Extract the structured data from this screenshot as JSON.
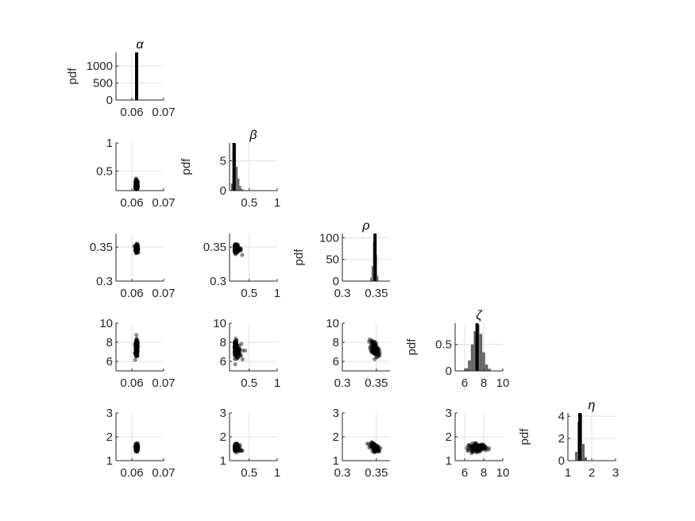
{
  "chart_data": {
    "type": "scatter",
    "description_kind": "corner-plot",
    "parameters": [
      {
        "symbol": "α",
        "lim": [
          0.055,
          0.07
        ],
        "ticks": [
          0.06,
          0.07
        ],
        "tick_labels": [
          "0.06",
          "0.07"
        ],
        "center": 0.0615,
        "spread": 0.0002
      },
      {
        "symbol": "β",
        "lim": [
          0.15,
          1.0
        ],
        "ticks": [
          0.5,
          1.0
        ],
        "tick_labels": [
          "0.5",
          "1"
        ],
        "center": 0.24,
        "spread": 0.05
      },
      {
        "symbol": "ρ",
        "lim": [
          0.3,
          0.37
        ],
        "ticks": [
          0.3,
          0.35
        ],
        "tick_labels": [
          "0.3",
          "0.35"
        ],
        "center": 0.348,
        "spread": 0.003
      },
      {
        "symbol": "ζ",
        "lim": [
          5,
          10
        ],
        "ticks": [
          6,
          8,
          10
        ],
        "tick_labels": [
          "6",
          "8",
          "10"
        ],
        "center": 7.3,
        "spread": 0.45
      },
      {
        "symbol": "η",
        "lim": [
          1,
          3
        ],
        "ticks": [
          1,
          2,
          3
        ],
        "tick_labels": [
          "1",
          "2",
          "3"
        ],
        "center": 1.55,
        "spread": 0.08
      }
    ],
    "diagonal": [
      {
        "ylim": [
          0,
          1400
        ],
        "yticks": [
          0,
          500,
          1000
        ],
        "ytick_labels": [
          "0",
          "500",
          "1000"
        ],
        "ylabel": "pdf",
        "bins": [
          0.0612,
          0.0614,
          0.0616,
          0.0618
        ],
        "heights": [
          300,
          1350,
          1300,
          200
        ],
        "marker": 0.0615
      },
      {
        "ylim": [
          0,
          8
        ],
        "yticks": [
          0,
          5
        ],
        "ytick_labels": [
          "0",
          "5"
        ],
        "ylabel": "pdf",
        "bins": [
          0.19,
          0.22,
          0.25,
          0.28,
          0.31,
          0.34,
          0.37,
          0.4
        ],
        "heights": [
          1.2,
          6.5,
          7.8,
          4.0,
          2.0,
          0.8,
          0.3,
          0.1
        ],
        "marker": 0.23
      },
      {
        "ylim": [
          0,
          110
        ],
        "yticks": [
          0,
          50,
          100
        ],
        "ytick_labels": [
          "0",
          "50",
          "100"
        ],
        "ylabel": "pdf",
        "bins": [
          0.342,
          0.344,
          0.346,
          0.348,
          0.35,
          0.352
        ],
        "heights": [
          8,
          35,
          90,
          108,
          60,
          12
        ],
        "marker": 0.348
      },
      {
        "ylim": [
          0,
          0.9
        ],
        "yticks": [
          0,
          0.5
        ],
        "ytick_labels": [
          "0",
          "0.5"
        ],
        "ylabel": "pdf",
        "bins": [
          6.2,
          6.5,
          6.8,
          7.1,
          7.4,
          7.7,
          8.0,
          8.3,
          8.6
        ],
        "heights": [
          0.05,
          0.2,
          0.5,
          0.75,
          0.88,
          0.7,
          0.35,
          0.12,
          0.04
        ],
        "marker": 7.3
      },
      {
        "ylim": [
          0,
          4.3
        ],
        "yticks": [
          0,
          2,
          4
        ],
        "ytick_labels": [
          "0",
          "2",
          "4"
        ],
        "ylabel": "pdf",
        "bins": [
          1.35,
          1.45,
          1.55,
          1.65,
          1.75
        ],
        "heights": [
          0.8,
          3.5,
          4.2,
          1.5,
          0.3
        ],
        "marker": 1.5
      }
    ],
    "offdiag_ylim": [
      null,
      {
        "lim": [
          0.15,
          1.0
        ],
        "ticks": [
          0.5,
          1.0
        ],
        "tick_labels": [
          "0.5",
          "1"
        ]
      },
      {
        "lim": [
          0.3,
          0.37
        ],
        "ticks": [
          0.3,
          0.35
        ],
        "tick_labels": [
          "0.3",
          "0.35"
        ]
      },
      {
        "lim": [
          5,
          10
        ],
        "ticks": [
          6,
          8,
          10
        ],
        "tick_labels": [
          "6",
          "8",
          "10"
        ]
      },
      {
        "lim": [
          1,
          3
        ],
        "ticks": [
          1,
          2,
          3
        ],
        "tick_labels": [
          "1",
          "2",
          "3"
        ]
      }
    ],
    "grid": true,
    "point_color": "#000000",
    "bar_color": "#666666",
    "marker_color": "#000000"
  }
}
